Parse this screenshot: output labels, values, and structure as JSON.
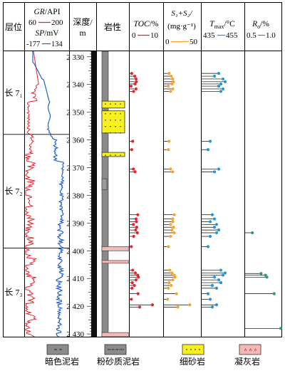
{
  "chart_data": {
    "type": "well-log",
    "headers": {
      "layer": "层位",
      "gr_sp": {
        "gr_name": "GR",
        "gr_unit": "/API",
        "gr_min": "60",
        "gr_max": "200",
        "sp_name": "SP",
        "sp_unit": "/mV",
        "sp_min": "-177",
        "sp_max": "134"
      },
      "depth": {
        "line1": "深度/",
        "line2": "m"
      },
      "lith": "岩性",
      "toc": {
        "name": "TOC",
        "unit": "/%",
        "min": "0",
        "max": "10"
      },
      "s1s2": {
        "line1": "S₁+S₂/",
        "line2": "(mg·g⁻¹)",
        "min": "0",
        "max": "50"
      },
      "tmax": {
        "name": "T",
        "sub": "max",
        "unit": "/°C",
        "min": "435",
        "max": "455"
      },
      "ro": {
        "name": "R",
        "sub": "o",
        "unit": "/%",
        "min": "0.5",
        "max": "1.0"
      }
    },
    "depth_range": [
      2328,
      2431
    ],
    "depth_ticks": [
      "2 330",
      "2 340",
      "2 350",
      "2 360",
      "2 370",
      "2 380",
      "2 390",
      "2 400",
      "2 410",
      "2 420",
      "2 430"
    ],
    "depth_tick_values": [
      2330,
      2340,
      2350,
      2360,
      2370,
      2380,
      2390,
      2400,
      2410,
      2420,
      2430
    ],
    "formations": [
      {
        "label": "长 7₁",
        "top": 2328,
        "bottom": 2358
      },
      {
        "label": "长 7₂",
        "top": 2358,
        "bottom": 2399
      },
      {
        "label": "长 7₃",
        "top": 2399,
        "bottom": 2431
      }
    ],
    "lithology": [
      {
        "type": "mudstone",
        "top": 2328,
        "bottom": 2431
      },
      {
        "type": "sandstone",
        "top": 2346,
        "bottom": 2348.5
      },
      {
        "type": "sandstone",
        "top": 2349.5,
        "bottom": 2357.5
      },
      {
        "type": "sandstone",
        "top": 2364.5,
        "bottom": 2366
      },
      {
        "type": "silty",
        "top": 2374,
        "bottom": 2378
      },
      {
        "type": "tuff",
        "top": 2398.5,
        "bottom": 2400
      },
      {
        "type": "tuff",
        "top": 2403.5,
        "bottom": 2404.5
      },
      {
        "type": "tuff",
        "top": 2429.5,
        "bottom": 2431
      }
    ],
    "series": [
      {
        "key": "toc",
        "color": "#e8232a",
        "min": 0,
        "max": 10,
        "points": [
          [
            2336,
            0.6
          ],
          [
            2337,
            1.5
          ],
          [
            2338,
            1.9
          ],
          [
            2339,
            2.0
          ],
          [
            2339.8,
            1.6
          ],
          [
            2340.6,
            0.4
          ],
          [
            2341.6,
            1.9
          ],
          [
            2342.5,
            1.2
          ],
          [
            2360.5,
            0.9
          ],
          [
            2363.5,
            0.6
          ],
          [
            2370.5,
            1.1
          ],
          [
            2371.5,
            1.6
          ],
          [
            2387,
            2.4
          ],
          [
            2388.5,
            1.9
          ],
          [
            2389.5,
            2.0
          ],
          [
            2390.5,
            1.1
          ],
          [
            2391.5,
            2.1
          ],
          [
            2392.5,
            1.8
          ],
          [
            2393.5,
            2.3
          ],
          [
            2394.8,
            1.2
          ],
          [
            2398.5,
            0.5
          ],
          [
            2407,
            0.9
          ],
          [
            2408,
            1.7
          ],
          [
            2408.8,
            2.4
          ],
          [
            2409.5,
            2.6
          ],
          [
            2410.5,
            1.9
          ],
          [
            2411.5,
            0.8
          ],
          [
            2412.5,
            1.4
          ],
          [
            2413.5,
            0.7
          ],
          [
            2415.5,
            2.5
          ],
          [
            2417.5,
            0.5
          ],
          [
            2419.5,
            6.8
          ],
          [
            2420.3,
            3.0
          ]
        ]
      },
      {
        "key": "s1s2",
        "color": "#f5a32a",
        "min": 0,
        "max": 50,
        "points": [
          [
            2336,
            7
          ],
          [
            2337,
            10
          ],
          [
            2338,
            12
          ],
          [
            2339,
            13
          ],
          [
            2339.8,
            11
          ],
          [
            2340.6,
            6
          ],
          [
            2341.6,
            12
          ],
          [
            2342.5,
            9
          ],
          [
            2360.5,
            7
          ],
          [
            2363.5,
            6
          ],
          [
            2370.5,
            9
          ],
          [
            2371.5,
            12
          ],
          [
            2387,
            14
          ],
          [
            2388.5,
            12
          ],
          [
            2389.5,
            12
          ],
          [
            2390.5,
            9
          ],
          [
            2391.5,
            13
          ],
          [
            2392.5,
            11
          ],
          [
            2393.5,
            14
          ],
          [
            2394.8,
            9
          ],
          [
            2398.5,
            6
          ],
          [
            2407,
            8
          ],
          [
            2408,
            11
          ],
          [
            2408.8,
            14
          ],
          [
            2409.5,
            15
          ],
          [
            2410.5,
            12
          ],
          [
            2411.5,
            7
          ],
          [
            2412.5,
            10
          ],
          [
            2413.5,
            6
          ],
          [
            2415.5,
            17
          ],
          [
            2417.5,
            5
          ],
          [
            2419.5,
            35
          ],
          [
            2420.3,
            19
          ]
        ]
      },
      {
        "key": "tmax",
        "color": "#2196d3",
        "min": 435,
        "max": 455,
        "points": [
          [
            2336,
            443
          ],
          [
            2337,
            441
          ],
          [
            2338,
            445
          ],
          [
            2339,
            446
          ],
          [
            2339.8,
            444
          ],
          [
            2340.6,
            443
          ],
          [
            2341.6,
            445
          ],
          [
            2342.5,
            444
          ],
          [
            2360.5,
            439
          ],
          [
            2363.5,
            438
          ],
          [
            2370.5,
            443
          ],
          [
            2371.5,
            441
          ],
          [
            2387,
            440
          ],
          [
            2388.5,
            441
          ],
          [
            2389.5,
            439
          ],
          [
            2390.5,
            442
          ],
          [
            2391.5,
            441
          ],
          [
            2392.5,
            443
          ],
          [
            2393.5,
            442
          ],
          [
            2394.8,
            439
          ],
          [
            2398.5,
            438
          ],
          [
            2407,
            444
          ],
          [
            2408,
            446
          ],
          [
            2408.8,
            445
          ],
          [
            2409.5,
            441
          ],
          [
            2410.5,
            443
          ],
          [
            2411.5,
            444
          ],
          [
            2412.5,
            440
          ],
          [
            2413.5,
            442
          ],
          [
            2415.5,
            438
          ],
          [
            2417.5,
            439
          ],
          [
            2419.5,
            442
          ],
          [
            2420.3,
            440
          ]
        ]
      },
      {
        "key": "ro",
        "color": "#2e9c70",
        "min": 0.5,
        "max": 1.0,
        "points": [
          [
            2393.5,
            0.6
          ],
          [
            2408.2,
            0.72
          ],
          [
            2408.8,
            0.78
          ],
          [
            2409.5,
            0.8
          ],
          [
            2415.5,
            0.9
          ],
          [
            2428,
            0.99
          ]
        ]
      }
    ],
    "legend": [
      {
        "type": "mudstone",
        "label": "暗色泥岩"
      },
      {
        "type": "silty",
        "label": "粉砂质泥岩"
      },
      {
        "type": "sandstone",
        "label": "细砂岩"
      },
      {
        "type": "tuff",
        "label": "凝灰岩"
      }
    ],
    "colors": {
      "gr": "#e8232a",
      "sp": "#1f5fd0",
      "mudstone": "#8a8a8a",
      "silty": "#9a9a9a",
      "sandstone": "#f7ef1e",
      "tuff": "#f5b8b8"
    }
  }
}
